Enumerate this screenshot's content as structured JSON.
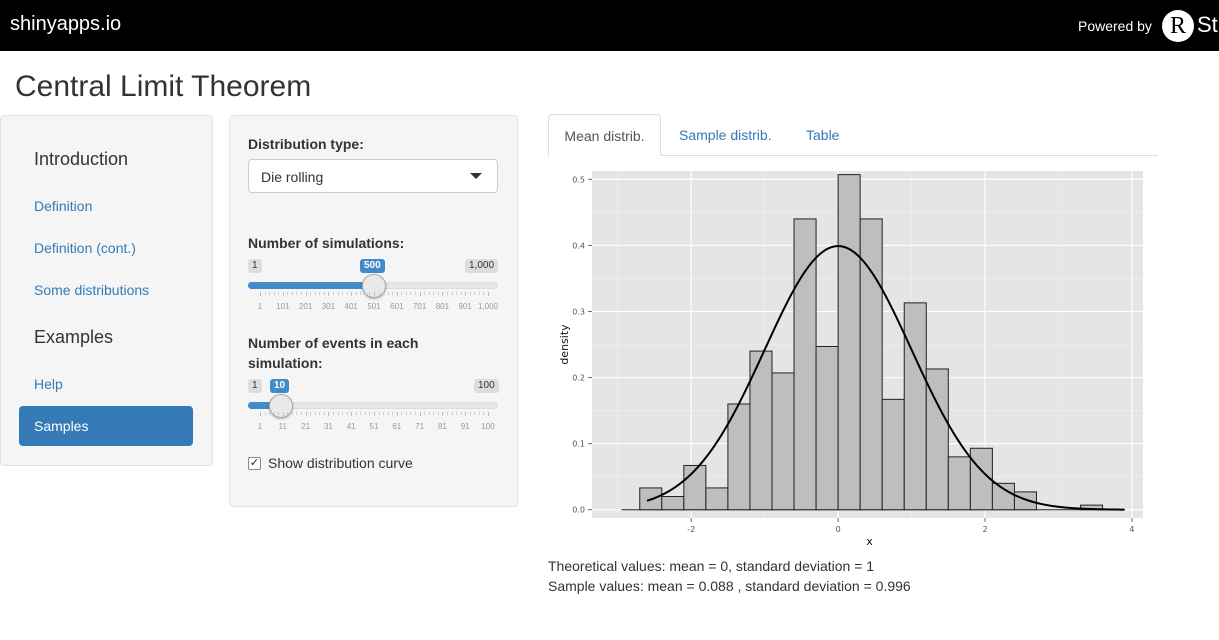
{
  "topbar": {
    "brand": "shinyapps.io",
    "powered_by": "Powered by",
    "logo_letter": "R",
    "logo_text": "Stu"
  },
  "page_title": "Central Limit Theorem",
  "sidebar": {
    "items": [
      {
        "label": "Introduction",
        "type": "header"
      },
      {
        "label": "Definition",
        "type": "link"
      },
      {
        "label": "Definition (cont.)",
        "type": "link"
      },
      {
        "label": "Some distributions",
        "type": "link"
      },
      {
        "label": "Examples",
        "type": "header"
      },
      {
        "label": "Help",
        "type": "link"
      },
      {
        "label": "Samples",
        "type": "active"
      }
    ]
  },
  "controls": {
    "distribution_label": "Distribution type:",
    "distribution_value": "Die rolling",
    "simulations": {
      "label": "Number of simulations:",
      "min": "1",
      "max": "1,000",
      "value": "500",
      "fraction": 0.5,
      "ticks": [
        "1",
        "101",
        "201",
        "301",
        "401",
        "501",
        "601",
        "701",
        "801",
        "901",
        "1,000"
      ]
    },
    "events": {
      "label_line1": "Number of events in each",
      "label_line2": "simulation:",
      "min": "1",
      "max": "100",
      "value": "10",
      "fraction": 0.0909,
      "ticks": [
        "1",
        "11",
        "21",
        "31",
        "41",
        "51",
        "61",
        "71",
        "81",
        "91",
        "100"
      ]
    },
    "show_curve_label": "Show distribution curve",
    "show_curve_checked": true
  },
  "tabs": [
    {
      "label": "Mean distrib.",
      "active": true
    },
    {
      "label": "Sample distrib.",
      "active": false
    },
    {
      "label": "Table",
      "active": false
    }
  ],
  "stats": {
    "theoretical": "Theoretical values: mean = 0, standard deviation = 1",
    "sample": "Sample values: mean = 0.088 , standard deviation = 0.996"
  },
  "chart_data": {
    "type": "bar",
    "xlabel": "x",
    "ylabel": "density",
    "xlim": [
      -3.35,
      4.15
    ],
    "ylim": [
      -0.0125,
      0.5125
    ],
    "x_ticks": [
      "-2",
      "0",
      "2",
      "4"
    ],
    "x_tick_values": [
      -2,
      0,
      2,
      4
    ],
    "y_ticks": [
      "0.0",
      "0.1",
      "0.2",
      "0.3",
      "0.4",
      "0.5"
    ],
    "y_tick_values": [
      0,
      0.1,
      0.2,
      0.3,
      0.4,
      0.5
    ],
    "bin_edges": [
      -2.7,
      -2.4,
      -2.1,
      -1.8,
      -1.5,
      -1.2,
      -0.9,
      -0.6,
      -0.3,
      0.0,
      0.3,
      0.6,
      0.9,
      1.2,
      1.5,
      1.8,
      2.1,
      2.4,
      2.7,
      3.0,
      3.3,
      3.6
    ],
    "values": [
      0.033,
      0.02,
      0.067,
      0.033,
      0.16,
      0.24,
      0.207,
      0.44,
      0.247,
      0.507,
      0.44,
      0.167,
      0.313,
      0.213,
      0.08,
      0.093,
      0.04,
      0.027,
      0.0,
      0.0,
      0.007
    ],
    "curve": "normal density, mean 0, sd 1",
    "curve_range": [
      -2.6,
      3.9
    ],
    "baseline_range": [
      -2.95,
      3.9
    ],
    "grid": true,
    "colors": {
      "panel_bg": "#e5e5e5",
      "grid": "#ffffff",
      "bar_fill": "#bebebe",
      "bar_stroke": "#222222",
      "curve": "#000000"
    }
  }
}
